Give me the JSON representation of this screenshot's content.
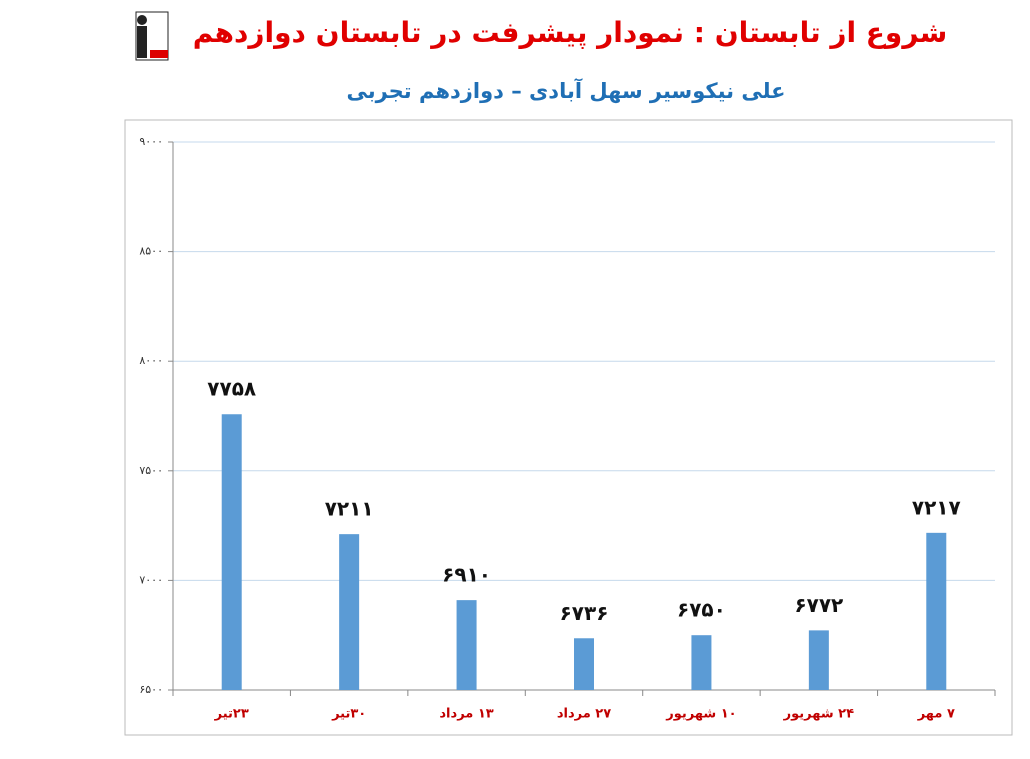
{
  "chart_data": {
    "type": "bar",
    "title": "شروع از تابستان : نمودار پیشرفت در تابستان دوازدهم",
    "subtitle": "علی نیکوسیر سهل آبادی – دوازدهم تجربی",
    "categories": [
      "۲۳تیر",
      "۳۰تیر",
      "۱۳ مرداد",
      "۲۷ مرداد",
      "۱۰ شهریور",
      "۲۴ شهریور",
      "۷ مهر"
    ],
    "values": [
      7758,
      7211,
      6910,
      6736,
      6750,
      6772,
      7217
    ],
    "value_labels": [
      "۷۷۵۸",
      "۷۲۱۱",
      "۶۹۱۰",
      "۶۷۳۶",
      "۶۷۵۰",
      "۶۷۷۲",
      "۷۲۱۷"
    ],
    "color": "#5b9bd5",
    "ylim": [
      6500,
      9000
    ],
    "yticks": [
      {
        "value": 6500,
        "label": "۶۵۰۰"
      },
      {
        "value": 7000,
        "label": "۷۰۰۰"
      },
      {
        "value": 7500,
        "label": "۷۵۰۰"
      },
      {
        "value": 8000,
        "label": "۸۰۰۰"
      },
      {
        "value": 8500,
        "label": "۸۵۰۰"
      },
      {
        "value": 9000,
        "label": "۹۰۰۰"
      }
    ],
    "grid": true
  }
}
